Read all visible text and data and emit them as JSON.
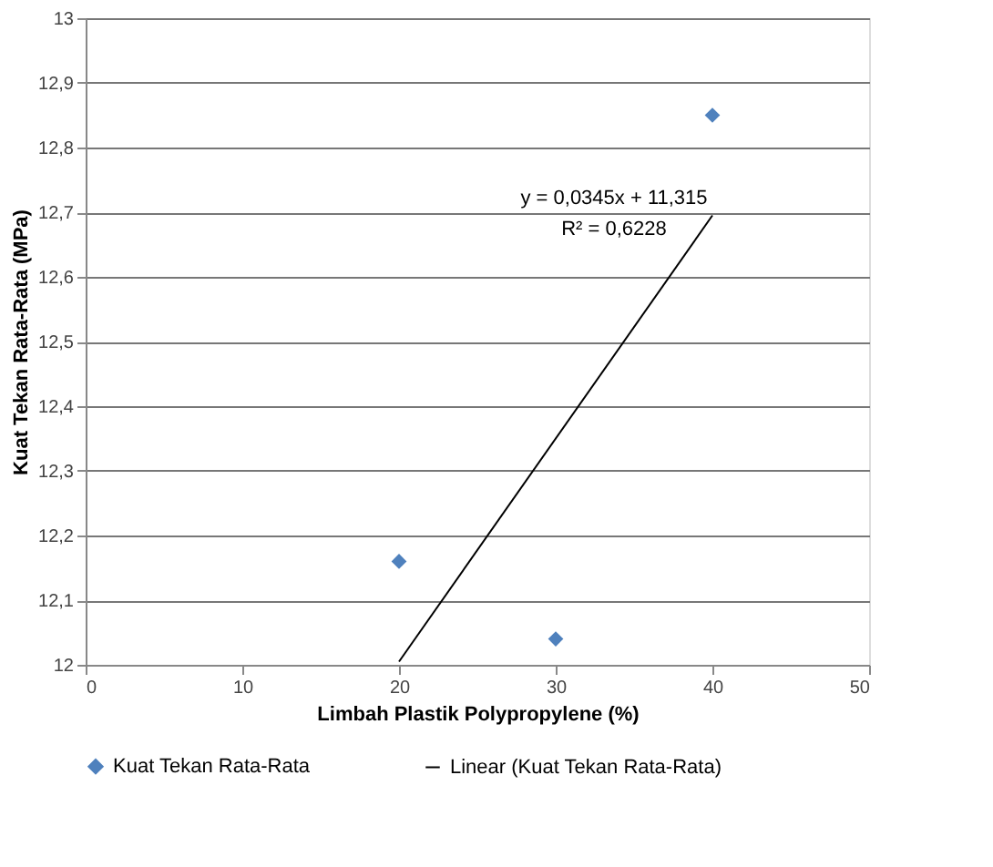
{
  "chart_data": {
    "type": "scatter",
    "xlabel": "Limbah Plastik Polypropylene (%)",
    "ylabel": "Kuat Tekan Rata-Rata  (MPa)",
    "xlim": [
      0,
      50
    ],
    "xticks": [
      0,
      10,
      20,
      30,
      40,
      50
    ],
    "ylim": [
      12,
      13
    ],
    "yticks": [
      {
        "value": 12,
        "label": "12"
      },
      {
        "value": 12.1,
        "label": "12,1"
      },
      {
        "value": 12.2,
        "label": "12,2"
      },
      {
        "value": 12.3,
        "label": "12,3"
      },
      {
        "value": 12.4,
        "label": "12,4"
      },
      {
        "value": 12.5,
        "label": "12,5"
      },
      {
        "value": 12.6,
        "label": "12,6"
      },
      {
        "value": 12.7,
        "label": "12,7"
      },
      {
        "value": 12.8,
        "label": "12,8"
      },
      {
        "value": 12.9,
        "label": "12,9"
      },
      {
        "value": 13,
        "label": "13"
      }
    ],
    "grid": "y",
    "legend": "bottom",
    "series": [
      {
        "name": "Kuat Tekan Rata-Rata",
        "type": "scatter",
        "marker": "diamond",
        "color": "#4f81bd",
        "x": [
          20,
          30,
          40
        ],
        "values": [
          12.16,
          12.04,
          12.85
        ]
      },
      {
        "name": "Linear (Kuat Tekan Rata-Rata)",
        "type": "line",
        "line_style": "solid",
        "color": "#000000",
        "x": [
          20,
          40
        ],
        "values": [
          12.005,
          12.695
        ]
      }
    ],
    "annotations": [
      "y = 0,0345x + 11,315",
      "R² = 0,6228"
    ]
  }
}
